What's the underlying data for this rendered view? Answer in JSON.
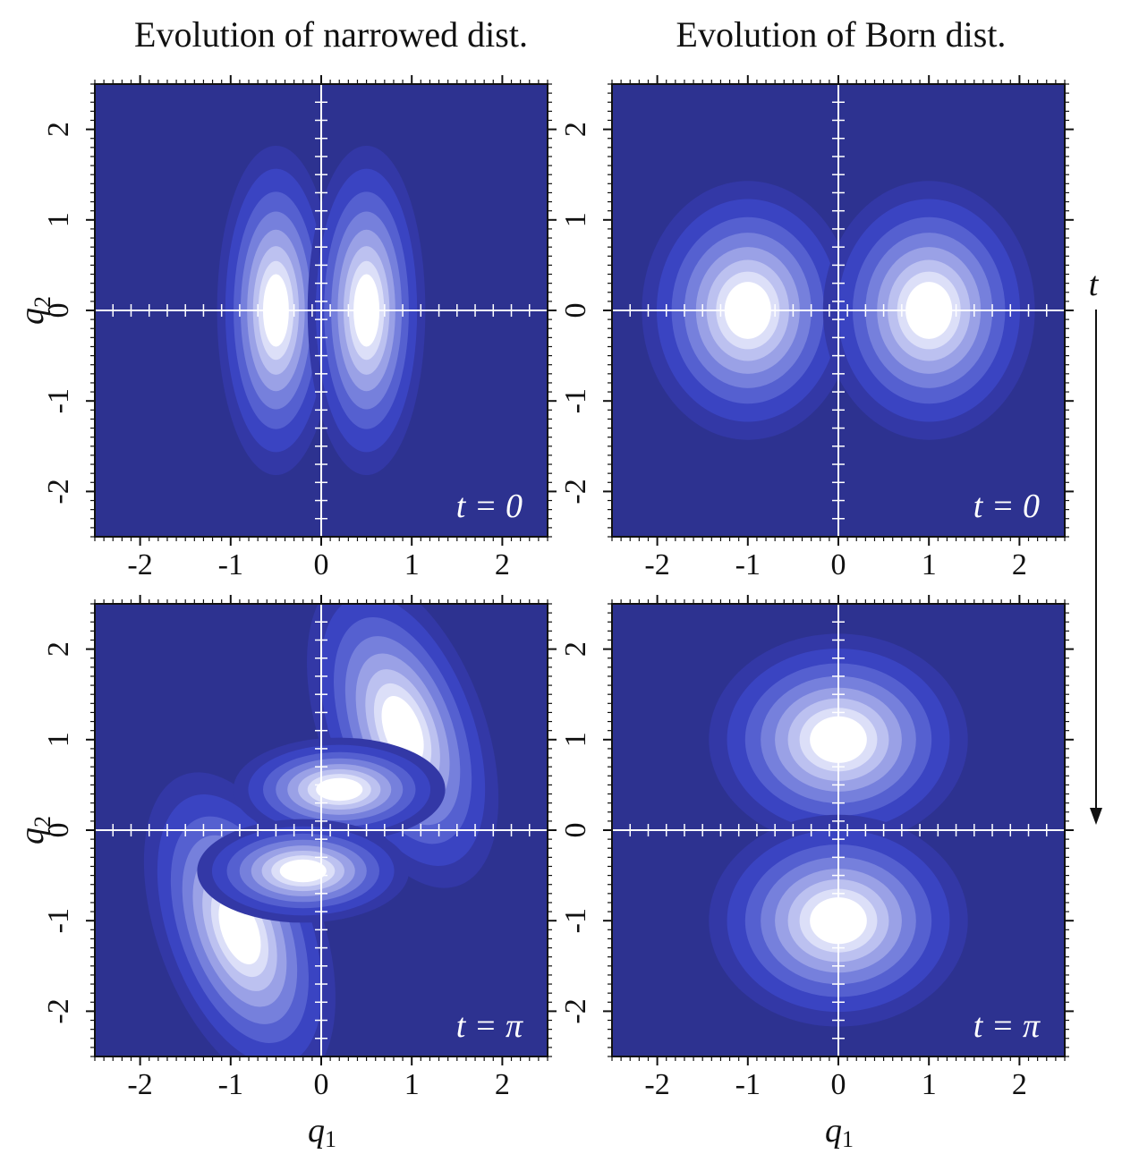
{
  "chart_data": {
    "type": "heatmap",
    "column_titles": [
      "Evolution of narrowed dist.",
      "Evolution of Born dist."
    ],
    "xlabel": {
      "base": "q",
      "sub": "1"
    },
    "ylabel": {
      "base": "q",
      "sub": "2"
    },
    "xlim": [
      -2.5,
      2.5
    ],
    "ylim": [
      -2.5,
      2.5
    ],
    "xticks": [
      -2,
      -1,
      0,
      1,
      2
    ],
    "yticks": [
      -2,
      -1,
      0,
      1,
      2
    ],
    "xtick_labels": [
      "-2",
      "-1",
      "0",
      "1",
      "2"
    ],
    "ytick_labels": [
      "-2",
      "-1",
      "0",
      "1",
      "2"
    ],
    "time_axis_label": "t",
    "colors": {
      "background": "#2d3290",
      "peak": "#ffffff"
    },
    "panels": [
      {
        "id": "narrowed-t0",
        "column": 0,
        "row": 0,
        "time_label": "t = 0",
        "lobes": [
          {
            "cx": -0.5,
            "cy": 0,
            "sx": 0.25,
            "sy": 0.7
          },
          {
            "cx": 0.5,
            "cy": 0,
            "sx": 0.25,
            "sy": 0.7
          }
        ]
      },
      {
        "id": "born-t0",
        "column": 1,
        "row": 0,
        "time_label": "t = 0",
        "lobes": [
          {
            "cx": -1,
            "cy": 0,
            "sx": 0.45,
            "sy": 0.55
          },
          {
            "cx": 1,
            "cy": 0,
            "sx": 0.45,
            "sy": 0.55
          }
        ]
      },
      {
        "id": "narrowed-tpi",
        "column": 0,
        "row": 1,
        "time_label": "t = π",
        "lobes": [
          {
            "cx": 0.9,
            "cy": 1.1,
            "sx": 0.35,
            "sy": 0.7,
            "rot": -20
          },
          {
            "cx": -0.9,
            "cy": -1.1,
            "sx": 0.35,
            "sy": 0.7,
            "rot": -20
          },
          {
            "cx": 0.2,
            "cy": 0.45,
            "sx": 0.45,
            "sy": 0.22
          },
          {
            "cx": -0.2,
            "cy": -0.45,
            "sx": 0.45,
            "sy": 0.22
          }
        ]
      },
      {
        "id": "born-tpi",
        "column": 1,
        "row": 1,
        "time_label": "t = π",
        "lobes": [
          {
            "cx": 0,
            "cy": 1,
            "sx": 0.55,
            "sy": 0.45
          },
          {
            "cx": 0,
            "cy": -1,
            "sx": 0.55,
            "sy": 0.45
          }
        ]
      }
    ]
  }
}
